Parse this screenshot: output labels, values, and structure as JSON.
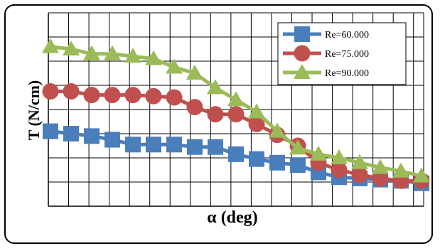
{
  "chart_data": {
    "type": "line",
    "title": "",
    "xlabel": "α (deg)",
    "ylabel": "T (N/cm)",
    "x_categories": 19,
    "ylim": [
      0,
      8
    ],
    "grid": true,
    "legend_position": "top-right",
    "series": [
      {
        "name": "Re=60.000",
        "color": "#4a7ebb",
        "marker": "square",
        "values": [
          3.1,
          3.0,
          2.9,
          2.75,
          2.55,
          2.55,
          2.55,
          2.45,
          2.45,
          2.15,
          1.95,
          1.8,
          1.7,
          1.4,
          1.2,
          1.15,
          1.1,
          1.05,
          0.95
        ]
      },
      {
        "name": "Re=75.000",
        "color": "#c0504d",
        "marker": "circle",
        "values": [
          4.75,
          4.75,
          4.6,
          4.6,
          4.6,
          4.55,
          4.5,
          4.1,
          3.8,
          3.8,
          3.4,
          2.95,
          2.5,
          1.8,
          1.5,
          1.3,
          1.15,
          1.05,
          1.05
        ]
      },
      {
        "name": "Re=90.000",
        "color": "#9bbb59",
        "marker": "triangle",
        "values": [
          6.6,
          6.5,
          6.3,
          6.3,
          6.2,
          6.1,
          5.75,
          5.5,
          4.9,
          4.4,
          3.9,
          3.1,
          2.4,
          2.15,
          2.0,
          1.8,
          1.6,
          1.45,
          1.25
        ]
      }
    ]
  }
}
